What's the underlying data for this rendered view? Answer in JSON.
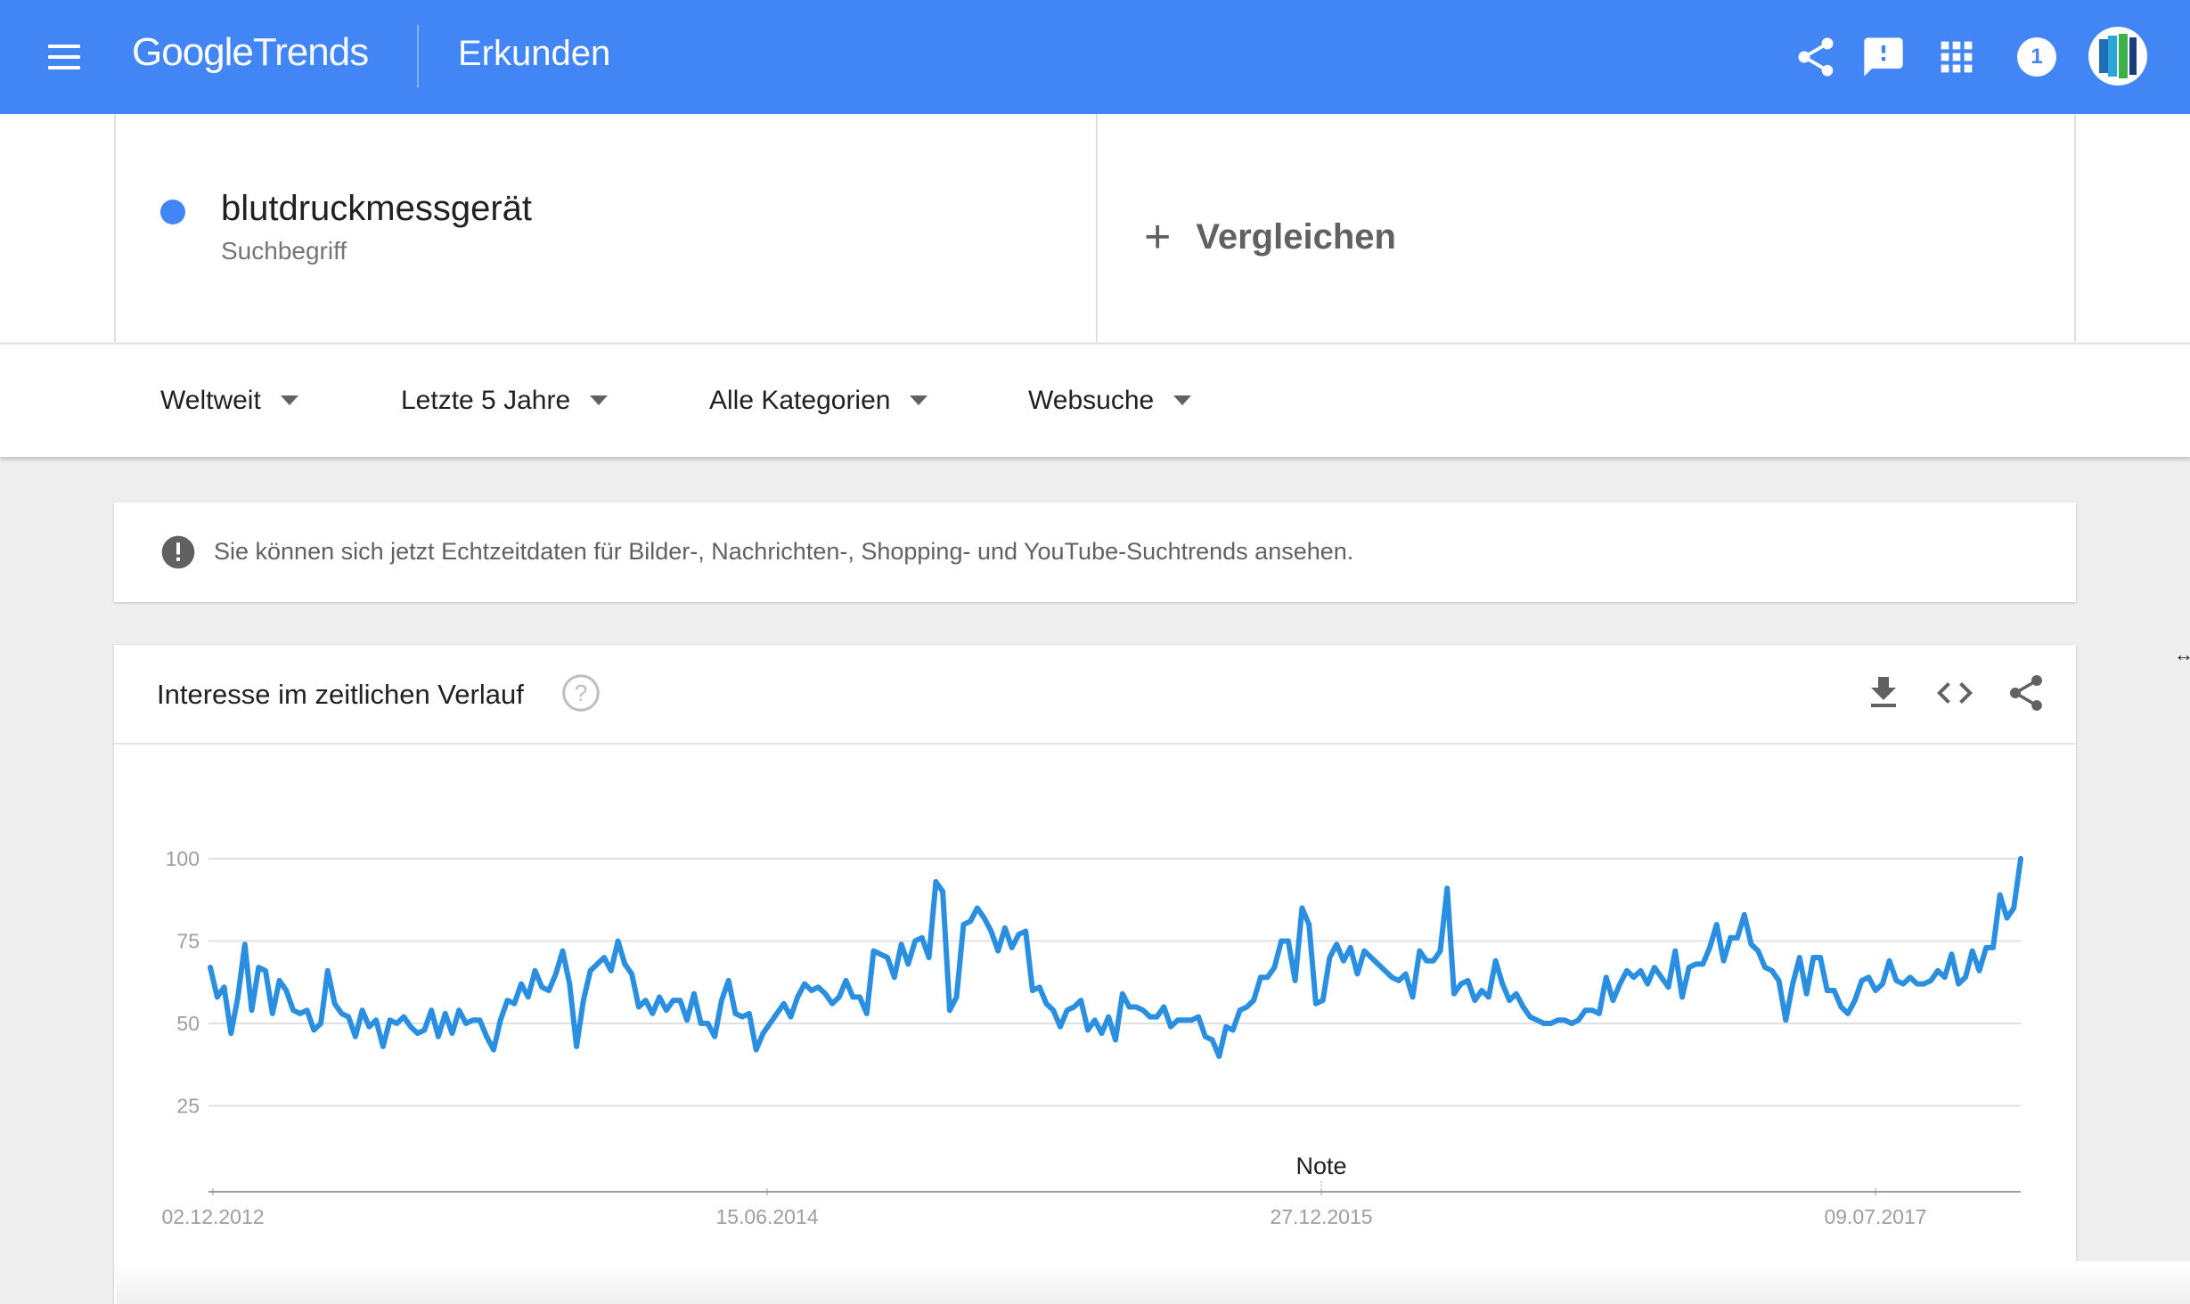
{
  "header": {
    "logo_google": "Google",
    "logo_trends": "Trends",
    "page_title": "Erkunden",
    "notification_count": "1"
  },
  "search_term": {
    "name": "blutdruckmessgerät",
    "type": "Suchbegriff",
    "color": "#4285f4"
  },
  "compare": {
    "plus": "+",
    "label": "Vergleichen"
  },
  "filters": {
    "region": "Weltweit",
    "timeframe": "Letzte 5 Jahre",
    "category": "Alle Kategorien",
    "search_type": "Websuche"
  },
  "notice": {
    "text": "Sie können sich jetzt Echtzeitdaten für Bilder-, Nachrichten-, Shopping- und YouTube-Suchtrends ansehen."
  },
  "chart_card": {
    "title": "Interesse im zeitlichen Verlauf"
  },
  "chart_data": {
    "type": "line",
    "title": "",
    "xlabel": "",
    "ylabel": "",
    "ylim": [
      0,
      100
    ],
    "y_ticks": [
      "100",
      "75",
      "50",
      "25"
    ],
    "x_tick_labels": [
      "02.12.2012",
      "15.06.2014",
      "27.12.2015",
      "09.07.2017"
    ],
    "annotation": "Note",
    "grid": true,
    "series": [
      {
        "color": "#2a8fe0",
        "values": [
          67,
          58,
          61,
          47,
          58,
          74,
          54,
          67,
          66,
          53,
          63,
          60,
          54,
          53,
          54,
          48,
          50,
          66,
          56,
          53,
          52,
          46,
          54,
          49,
          51,
          43,
          51,
          50,
          52,
          49,
          47,
          48,
          54,
          46,
          53,
          47,
          54,
          50,
          51,
          51,
          46,
          42,
          51,
          57,
          56,
          62,
          58,
          66,
          61,
          60,
          65,
          72,
          62,
          43,
          57,
          66,
          68,
          70,
          66,
          75,
          68,
          65,
          55,
          57,
          53,
          58,
          54,
          57,
          57,
          51,
          59,
          50,
          50,
          46,
          57,
          63,
          53,
          52,
          53,
          42,
          47,
          50,
          53,
          56,
          52,
          58,
          62,
          60,
          61,
          59,
          56,
          58,
          63,
          58,
          58,
          53,
          72,
          71,
          70,
          64,
          74,
          68,
          75,
          76,
          70,
          93,
          90,
          54,
          58,
          80,
          81,
          85,
          82,
          78,
          72,
          79,
          73,
          77,
          78,
          60,
          61,
          56,
          54,
          49,
          54,
          55,
          57,
          48,
          51,
          47,
          52,
          45,
          59,
          55,
          55,
          54,
          52,
          52,
          55,
          49,
          51,
          51,
          51,
          52,
          46,
          45,
          40,
          49,
          48,
          54,
          55,
          57,
          64,
          64,
          67,
          75,
          75,
          63,
          85,
          80,
          56,
          57,
          70,
          74,
          69,
          73,
          65,
          72,
          70,
          68,
          66,
          64,
          63,
          65,
          58,
          72,
          69,
          69,
          72,
          91,
          59,
          62,
          63,
          57,
          60,
          58,
          69,
          62,
          57,
          59,
          55,
          52,
          51,
          50,
          50,
          51,
          51,
          50,
          51,
          54,
          54,
          53,
          64,
          57,
          62,
          66,
          64,
          66,
          62,
          67,
          64,
          61,
          72,
          58,
          67,
          68,
          68,
          73,
          80,
          69,
          76,
          76,
          83,
          74,
          72,
          67,
          66,
          63,
          51,
          62,
          70,
          59,
          70,
          70,
          60,
          60,
          55,
          53,
          57,
          63,
          64,
          60,
          62,
          69,
          63,
          62,
          64,
          62,
          62,
          63,
          66,
          64,
          71,
          62,
          64,
          72,
          66,
          73,
          73,
          89,
          82,
          85,
          100
        ]
      }
    ]
  }
}
